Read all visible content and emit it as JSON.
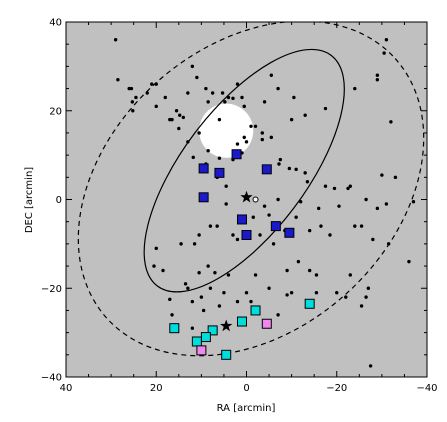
{
  "chart_data": {
    "type": "scatter",
    "xlabel": "RA [arcmin]",
    "ylabel": "DEC [arcmin]",
    "xlim": [
      40,
      -40
    ],
    "ylim": [
      -40,
      40
    ],
    "x_ticks": [
      {
        "value": 40,
        "label": "40"
      },
      {
        "value": 20,
        "label": "20"
      },
      {
        "value": 0,
        "label": "0"
      },
      {
        "value": -20,
        "label": "−20"
      },
      {
        "value": -40,
        "label": "−40"
      }
    ],
    "y_ticks": [
      {
        "value": 40,
        "label": "40"
      },
      {
        "value": 20,
        "label": "20"
      },
      {
        "value": 0,
        "label": "0"
      },
      {
        "value": -20,
        "label": "−20"
      },
      {
        "value": -40,
        "label": "−40"
      }
    ],
    "background_color": "#c0c0c0",
    "ellipses": [
      {
        "cx": 0.5,
        "cy": 6.5,
        "rx": 32,
        "ry": 14,
        "angle_deg": -53,
        "style": "solid"
      },
      {
        "cx": -1,
        "cy": 2.5,
        "rx": 43,
        "ry": 32,
        "angle_deg": -42,
        "style": "dashed"
      }
    ],
    "masked_region": {
      "cx": 4.5,
      "cy": 15.5,
      "r": 6,
      "color": "#ffffff"
    },
    "stars": [
      {
        "x": 0,
        "y": 0.5
      },
      {
        "x": 4.5,
        "y": -28.5
      }
    ],
    "open_circle": {
      "x": -2,
      "y": 0
    },
    "series": [
      {
        "marker": "dot",
        "color": "#000000",
        "points": [
          [
            29,
            36
          ],
          [
            28.5,
            27
          ],
          [
            26,
            25
          ],
          [
            25.5,
            25
          ],
          [
            25.3,
            22
          ],
          [
            25.2,
            20
          ],
          [
            24.5,
            23
          ],
          [
            22,
            24
          ],
          [
            20,
            21
          ],
          [
            21,
            26
          ],
          [
            18,
            23
          ],
          [
            16.5,
            18
          ],
          [
            15.5,
            20
          ],
          [
            15,
            16
          ],
          [
            14.8,
            19
          ],
          [
            14,
            18.5
          ],
          [
            13,
            24
          ],
          [
            12,
            30
          ],
          [
            11,
            27.5
          ],
          [
            9,
            25
          ],
          [
            8.5,
            22
          ],
          [
            7.5,
            24
          ],
          [
            5.3,
            24
          ],
          [
            4.8,
            22
          ],
          [
            4,
            23
          ],
          [
            3,
            22.8
          ],
          [
            2,
            26
          ],
          [
            1,
            23
          ],
          [
            0.5,
            21
          ],
          [
            -2,
            16.5
          ],
          [
            -3.5,
            15
          ],
          [
            -4,
            22
          ],
          [
            -5.5,
            28
          ],
          [
            -7,
            25
          ],
          [
            -10,
            18
          ],
          [
            -10.5,
            23
          ],
          [
            -13,
            19
          ],
          [
            -17.5,
            20.5
          ],
          [
            -24,
            25
          ],
          [
            -29,
            28
          ],
          [
            -29,
            27
          ],
          [
            -30.5,
            33
          ],
          [
            -31,
            36
          ],
          [
            -32,
            17.5
          ],
          [
            17,
            18
          ],
          [
            13,
            13
          ],
          [
            11.8,
            9.5
          ],
          [
            10.5,
            15
          ],
          [
            9,
            8
          ],
          [
            8.5,
            11
          ],
          [
            6,
            9.3
          ],
          [
            3,
            9
          ],
          [
            1,
            10.5
          ],
          [
            0.5,
            14
          ],
          [
            0,
            13
          ],
          [
            -1,
            16.5
          ],
          [
            -3.5,
            13.5
          ],
          [
            -5.5,
            14
          ],
          [
            -7.2,
            8
          ],
          [
            -7.5,
            9
          ],
          [
            -9.5,
            7
          ],
          [
            -11,
            6.8
          ],
          [
            -12,
            -0.5
          ],
          [
            -13,
            6
          ],
          [
            -13.5,
            4
          ],
          [
            -16,
            -2
          ],
          [
            -17.5,
            3
          ],
          [
            -19.5,
            2.5
          ],
          [
            -20.5,
            -1.5
          ],
          [
            -22.5,
            2.5
          ],
          [
            -23,
            3
          ],
          [
            -24,
            -6
          ],
          [
            -25.5,
            -6
          ],
          [
            -26.5,
            0
          ],
          [
            -29,
            -2
          ],
          [
            -30,
            5.5
          ],
          [
            -31,
            -1
          ],
          [
            -33,
            5
          ],
          [
            -37,
            -0.5
          ],
          [
            -36,
            -14
          ],
          [
            -31.5,
            -10
          ],
          [
            -28,
            -9
          ],
          [
            -27,
            -20
          ],
          [
            -26.5,
            -22
          ],
          [
            -25.5,
            -24
          ],
          [
            -23,
            -17
          ],
          [
            -22,
            -22
          ],
          [
            -20,
            -21
          ],
          [
            -18.5,
            -8
          ],
          [
            -15.5,
            -17
          ],
          [
            -15.5,
            -21
          ],
          [
            -14,
            -7
          ],
          [
            -14,
            -16
          ],
          [
            -11,
            -4
          ],
          [
            -10,
            -21
          ],
          [
            -9,
            -21.5
          ],
          [
            -7,
            -26
          ],
          [
            -5,
            -20
          ],
          [
            -2,
            -17
          ],
          [
            -1,
            -23
          ],
          [
            0,
            -21
          ],
          [
            2,
            -23
          ],
          [
            3,
            -8
          ],
          [
            4,
            -17
          ],
          [
            5,
            -21
          ],
          [
            6,
            -24
          ],
          [
            7,
            -16.5
          ],
          [
            8,
            -6
          ],
          [
            8.5,
            -15
          ],
          [
            9.5,
            -25
          ],
          [
            10,
            -22
          ],
          [
            10.5,
            -8
          ],
          [
            10.5,
            -16.5
          ],
          [
            11.5,
            -10
          ],
          [
            12,
            -23
          ],
          [
            13,
            -20
          ],
          [
            13.5,
            -19
          ],
          [
            14.5,
            -10
          ],
          [
            16.5,
            -26
          ],
          [
            17,
            -22.5
          ],
          [
            18.5,
            -16
          ],
          [
            20,
            -11
          ],
          [
            20.5,
            -15
          ],
          [
            8,
            -20
          ],
          [
            12,
            -29
          ],
          [
            4.5,
            -1
          ],
          [
            6.5,
            -6
          ],
          [
            1,
            -4
          ],
          [
            -1.5,
            -4
          ],
          [
            -4,
            -1.5
          ],
          [
            -5,
            -3.5
          ],
          [
            6.5,
            5
          ],
          [
            4.5,
            3
          ],
          [
            -5,
            6.5
          ],
          [
            -7,
            0
          ],
          [
            2,
            -9
          ],
          [
            -3,
            -8
          ],
          [
            -27.5,
            -37.5
          ],
          [
            -6,
            -10
          ],
          [
            -8.5,
            -7
          ],
          [
            -11.5,
            -14
          ],
          [
            -9,
            -16
          ],
          [
            -16.5,
            -6
          ],
          [
            2,
            12.5
          ],
          [
            20,
            26
          ],
          [
            6,
            18
          ]
        ]
      },
      {
        "marker": "square",
        "color": "#1a1acc",
        "points": [
          [
            2.2,
            10.2
          ],
          [
            9.5,
            7
          ],
          [
            6,
            6
          ],
          [
            -4.5,
            6.8
          ],
          [
            9.5,
            0.5
          ],
          [
            1,
            -4.5
          ],
          [
            -6.5,
            -6
          ],
          [
            0,
            -8
          ],
          [
            -9.5,
            -7.5
          ]
        ]
      },
      {
        "marker": "square",
        "color": "#00dddd",
        "points": [
          [
            -14,
            -23.5
          ],
          [
            -2,
            -25
          ],
          [
            1,
            -27.5
          ],
          [
            7.5,
            -29.5
          ],
          [
            9,
            -31
          ],
          [
            11,
            -32
          ],
          [
            16,
            -29
          ],
          [
            4.5,
            -35
          ]
        ]
      },
      {
        "marker": "square",
        "color": "#ee88ee",
        "points": [
          [
            -4.5,
            -28
          ],
          [
            10,
            -34
          ]
        ]
      }
    ]
  }
}
